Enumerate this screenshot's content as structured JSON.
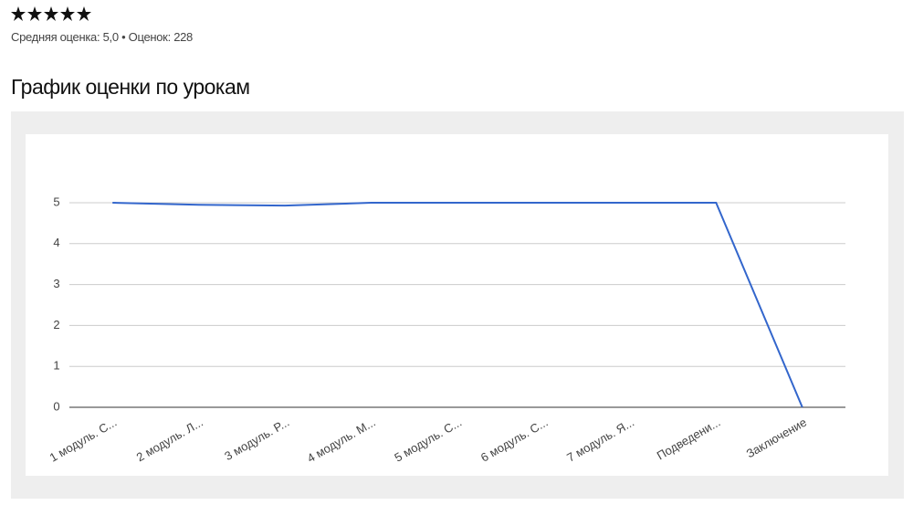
{
  "rating": {
    "summary": "Средняя оценка: 5,0 • Оценок: 228"
  },
  "chart_data": {
    "type": "line",
    "title": "График оценки по урокам",
    "categories": [
      "1 модуль. С...",
      "2 модуль. Л...",
      "3 модуль. Р...",
      "4 модуль. М...",
      "5 модуль. С...",
      "6 модуль. С...",
      "7 модуль. Я...",
      "Подведени...",
      "Заключение"
    ],
    "series": [
      {
        "name": "Средняя оценка",
        "color": "#3366cc",
        "values": [
          5,
          4.95,
          4.93,
          5,
          5,
          5,
          5,
          5,
          0
        ]
      }
    ],
    "ylim": [
      0,
      5
    ],
    "yticks": [
      0,
      1,
      2,
      3,
      4,
      5
    ],
    "grid": true
  }
}
